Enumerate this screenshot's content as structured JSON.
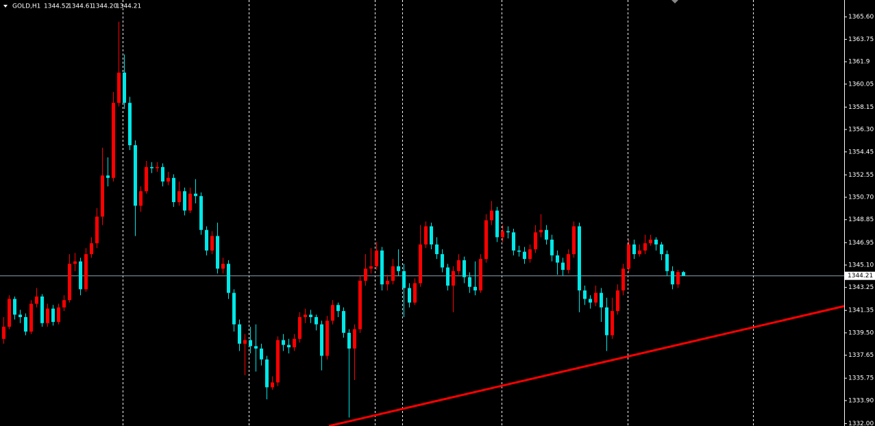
{
  "chart_data": {
    "type": "candlestick",
    "symbol": "GOLD,H1",
    "header_values": [
      1344.52,
      1344.61,
      {
        "value": 1344.2,
        "label": "1344.20"
      },
      1344.21
    ],
    "up_color": "#ff0000",
    "down_color": "#00e8e8",
    "ylim": [
      1331.8,
      1367.0
    ],
    "yticks": [
      {
        "value": 1365.6,
        "label": "1365.60"
      },
      1363.75,
      1361.9,
      1360.05,
      1358.15,
      {
        "value": 1356.3,
        "label": "1356.30"
      },
      1354.45,
      1352.55,
      {
        "value": 1350.7,
        "label": "1350.70"
      },
      1348.85,
      1346.95,
      {
        "value": 1345.1,
        "label": "1345.10"
      },
      1343.25,
      1341.35,
      {
        "value": 1339.5,
        "label": "1339.50"
      },
      1337.65,
      1335.75,
      {
        "value": 1333.9,
        "label": "1333.90"
      },
      {
        "value": 1332.0,
        "label": "1332.00"
      }
    ],
    "current_price": 1344.21,
    "ohlc": [
      [
        1339.0,
        1340.8,
        1338.6,
        1340.0
      ],
      [
        1340.0,
        1342.6,
        1339.8,
        1342.3
      ],
      [
        1342.3,
        1342.5,
        1340.6,
        1341.0
      ],
      [
        1341.0,
        1341.4,
        1340.3,
        1340.8
      ],
      [
        1340.8,
        1341.1,
        1339.3,
        1339.6
      ],
      [
        1339.6,
        1342.2,
        1339.4,
        1341.9
      ],
      [
        1341.9,
        1343.2,
        1341.6,
        1342.5
      ],
      [
        1342.5,
        1342.7,
        1340.0,
        1340.3
      ],
      [
        1340.3,
        1341.9,
        1340.0,
        1341.5
      ],
      [
        1341.5,
        1341.8,
        1340.1,
        1340.4
      ],
      [
        1340.4,
        1341.9,
        1340.2,
        1341.6
      ],
      [
        1341.6,
        1342.6,
        1341.3,
        1342.2
      ],
      [
        1342.2,
        1346.0,
        1342.0,
        1345.2
      ],
      [
        1345.2,
        1346.1,
        1344.6,
        1345.4
      ],
      [
        1345.4,
        1345.7,
        1342.6,
        1343.1
      ],
      [
        1343.1,
        1346.5,
        1342.9,
        1346.0
      ],
      [
        1346.0,
        1347.4,
        1345.7,
        1346.9
      ],
      [
        1346.9,
        1349.8,
        1346.5,
        1349.1
      ],
      [
        1349.1,
        1354.8,
        1348.4,
        1352.5
      ],
      [
        1352.5,
        1354.0,
        1351.6,
        1352.3
      ],
      [
        1352.3,
        1359.4,
        1352.0,
        1358.5
      ],
      [
        1358.5,
        1365.2,
        1358.2,
        1361.0
      ],
      [
        1361.0,
        1362.5,
        1358.0,
        1358.5
      ],
      [
        1358.5,
        1359.0,
        1354.6,
        1355.0
      ],
      [
        1355.0,
        1355.4,
        1347.5,
        1350.0
      ],
      [
        1350.0,
        1351.6,
        1349.5,
        1351.2
      ],
      [
        1351.2,
        1353.7,
        1351.0,
        1353.2
      ],
      [
        1353.2,
        1353.6,
        1352.7,
        1353.1
      ],
      [
        1353.1,
        1353.6,
        1352.8,
        1353.2
      ],
      [
        1353.2,
        1353.5,
        1351.6,
        1352.0
      ],
      [
        1352.0,
        1352.8,
        1351.7,
        1352.3
      ],
      [
        1352.3,
        1352.6,
        1349.9,
        1350.3
      ],
      [
        1350.3,
        1352.0,
        1350.0,
        1351.2
      ],
      [
        1351.2,
        1351.5,
        1349.2,
        1349.6
      ],
      [
        1349.6,
        1351.5,
        1349.4,
        1351.0
      ],
      [
        1351.0,
        1352.2,
        1350.2,
        1350.8
      ],
      [
        1350.8,
        1351.1,
        1347.6,
        1348.0
      ],
      [
        1348.0,
        1348.3,
        1345.9,
        1346.3
      ],
      [
        1346.3,
        1347.9,
        1346.0,
        1347.5
      ],
      [
        1347.5,
        1348.6,
        1344.4,
        1344.8
      ],
      [
        1344.8,
        1345.7,
        1344.4,
        1345.2
      ],
      [
        1345.2,
        1345.5,
        1342.3,
        1342.8
      ],
      [
        1342.8,
        1343.1,
        1339.6,
        1340.2
      ],
      [
        1340.2,
        1340.6,
        1338.0,
        1338.6
      ],
      [
        1338.6,
        1339.4,
        1336.0,
        1338.9
      ],
      [
        1338.9,
        1340.0,
        1337.8,
        1338.4
      ],
      [
        1338.4,
        1340.2,
        1336.3,
        1338.2
      ],
      [
        1338.2,
        1338.6,
        1336.8,
        1337.3
      ],
      [
        1337.3,
        1337.6,
        1334.0,
        1335.0
      ],
      [
        1335.0,
        1335.9,
        1334.8,
        1335.4
      ],
      [
        1335.4,
        1339.2,
        1335.1,
        1338.9
      ],
      [
        1338.9,
        1339.4,
        1338.0,
        1338.5
      ],
      [
        1338.5,
        1339.0,
        1337.8,
        1338.3
      ],
      [
        1338.3,
        1339.4,
        1338.0,
        1339.0
      ],
      [
        1339.0,
        1341.2,
        1338.7,
        1340.8
      ],
      [
        1340.8,
        1341.5,
        1340.3,
        1341.0
      ],
      [
        1341.0,
        1341.4,
        1340.3,
        1340.8
      ],
      [
        1340.8,
        1341.0,
        1339.7,
        1340.2
      ],
      [
        1340.2,
        1340.5,
        1336.4,
        1337.6
      ],
      [
        1337.6,
        1340.9,
        1337.3,
        1340.5
      ],
      [
        1340.5,
        1342.2,
        1340.2,
        1341.8
      ],
      [
        1341.8,
        1342.0,
        1340.8,
        1341.3
      ],
      [
        1341.3,
        1341.6,
        1339.1,
        1339.5
      ],
      [
        1339.5,
        1339.8,
        1332.5,
        1338.2
      ],
      [
        1338.2,
        1340.2,
        1335.6,
        1339.8
      ],
      [
        1339.8,
        1344.2,
        1339.5,
        1343.8
      ],
      [
        1343.8,
        1346.0,
        1343.4,
        1344.8
      ],
      [
        1344.8,
        1346.5,
        1344.4,
        1345.0
      ],
      [
        1345.0,
        1347.0,
        1344.7,
        1346.3
      ],
      [
        1346.3,
        1346.6,
        1343.0,
        1343.5
      ],
      [
        1343.5,
        1344.3,
        1343.0,
        1343.8
      ],
      [
        1343.8,
        1345.6,
        1343.5,
        1345.0
      ],
      [
        1345.0,
        1346.4,
        1344.2,
        1344.6
      ],
      [
        1344.6,
        1345.2,
        1340.8,
        1343.2
      ],
      [
        1343.2,
        1343.6,
        1341.6,
        1342.0
      ],
      [
        1342.0,
        1344.0,
        1341.8,
        1343.6
      ],
      [
        1343.6,
        1348.4,
        1343.3,
        1346.8
      ],
      [
        1346.8,
        1348.7,
        1346.5,
        1348.3
      ],
      [
        1348.3,
        1348.6,
        1346.4,
        1346.8
      ],
      [
        1346.8,
        1347.4,
        1345.6,
        1346.0
      ],
      [
        1346.0,
        1346.4,
        1344.5,
        1344.9
      ],
      [
        1344.9,
        1345.2,
        1343.0,
        1343.4
      ],
      [
        1343.4,
        1345.0,
        1341.2,
        1344.6
      ],
      [
        1344.6,
        1346.0,
        1344.3,
        1345.5
      ],
      [
        1345.5,
        1345.8,
        1343.6,
        1344.1
      ],
      [
        1344.1,
        1344.5,
        1342.8,
        1343.3
      ],
      [
        1343.3,
        1345.4,
        1342.6,
        1343.0
      ],
      [
        1343.0,
        1346.0,
        1342.8,
        1345.6
      ],
      [
        1345.6,
        1349.3,
        1345.3,
        1348.8
      ],
      [
        1348.8,
        1350.4,
        1348.4,
        1349.6
      ],
      [
        1349.6,
        1349.9,
        1347.0,
        1347.4
      ],
      [
        1347.4,
        1348.4,
        1347.0,
        1347.9
      ],
      [
        1347.9,
        1348.3,
        1347.3,
        1347.8
      ],
      [
        1347.8,
        1348.1,
        1345.9,
        1346.3
      ],
      [
        1346.3,
        1346.7,
        1345.8,
        1346.2
      ],
      [
        1346.2,
        1346.6,
        1345.2,
        1345.6
      ],
      [
        1345.6,
        1346.8,
        1345.3,
        1346.4
      ],
      [
        1346.4,
        1348.4,
        1346.1,
        1347.8
      ],
      [
        1347.8,
        1349.3,
        1347.4,
        1348.0
      ],
      [
        1348.0,
        1348.4,
        1346.8,
        1347.2
      ],
      [
        1347.2,
        1347.6,
        1345.4,
        1345.9
      ],
      [
        1345.9,
        1346.3,
        1344.3,
        1345.3
      ],
      [
        1345.3,
        1345.7,
        1344.2,
        1344.7
      ],
      [
        1344.7,
        1346.4,
        1344.4,
        1346.0
      ],
      [
        1346.0,
        1348.7,
        1345.7,
        1348.3
      ],
      [
        1348.3,
        1348.6,
        1341.2,
        1343.0
      ],
      [
        1343.0,
        1343.4,
        1341.8,
        1342.3
      ],
      [
        1342.3,
        1342.6,
        1341.5,
        1342.0
      ],
      [
        1342.0,
        1343.4,
        1341.7,
        1342.8
      ],
      [
        1342.8,
        1343.2,
        1340.4,
        1341.6
      ],
      [
        1341.6,
        1342.4,
        1338.0,
        1339.3
      ],
      [
        1339.3,
        1342.4,
        1339.0,
        1341.3
      ],
      [
        1341.3,
        1343.5,
        1341.0,
        1343.0
      ],
      [
        1343.0,
        1345.2,
        1342.6,
        1344.8
      ],
      [
        1344.8,
        1347.2,
        1344.5,
        1346.8
      ],
      [
        1346.8,
        1347.2,
        1345.6,
        1346.0
      ],
      [
        1346.0,
        1346.8,
        1345.8,
        1346.3
      ],
      [
        1346.3,
        1347.6,
        1346.0,
        1346.9
      ],
      [
        1346.9,
        1347.6,
        1346.7,
        1347.2
      ],
      [
        1347.2,
        1347.4,
        1346.3,
        1346.8
      ],
      [
        1346.8,
        1347.0,
        1345.5,
        1346.0
      ],
      [
        1346.0,
        1346.3,
        1344.2,
        1344.6
      ],
      [
        1344.6,
        1345.0,
        1343.1,
        1343.5
      ],
      [
        1343.5,
        1344.7,
        1343.2,
        1344.52
      ],
      [
        1344.52,
        1344.61,
        1344.2,
        1344.21
      ]
    ]
  }
}
